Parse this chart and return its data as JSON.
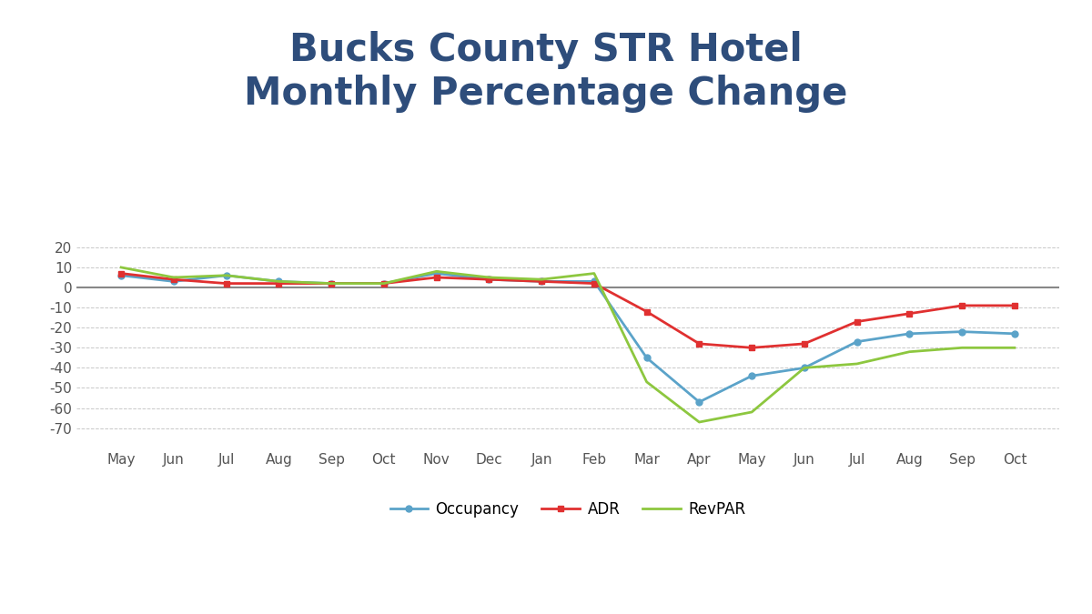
{
  "title": "Bucks County STR Hotel\nMonthly Percentage Change",
  "title_color": "#2E4D7B",
  "months": [
    "May",
    "Jun",
    "Jul",
    "Aug",
    "Sep",
    "Oct",
    "Nov",
    "Dec",
    "Jan",
    "Feb",
    "Mar",
    "Apr",
    "May",
    "Jun",
    "Jul",
    "Aug",
    "Sep",
    "Oct"
  ],
  "occupancy": [
    6,
    3,
    6,
    3,
    2,
    2,
    7,
    4,
    3,
    3,
    -35,
    -57,
    -44,
    -40,
    -27,
    -23,
    -22,
    -23
  ],
  "adr": [
    7,
    4,
    2,
    2,
    2,
    2,
    5,
    4,
    3,
    2,
    -12,
    -28,
    -30,
    -28,
    -17,
    -13,
    -9,
    -9
  ],
  "revpar": [
    10,
    5,
    6,
    3,
    2,
    2,
    8,
    5,
    4,
    7,
    -47,
    -67,
    -62,
    -40,
    -38,
    -32,
    -30,
    -30
  ],
  "occupancy_color": "#5BA3C9",
  "adr_color": "#E03030",
  "revpar_color": "#8DC73F",
  "ylim": [
    -80,
    30
  ],
  "yticks": [
    -70,
    -60,
    -50,
    -40,
    -30,
    -20,
    -10,
    0,
    10,
    20
  ],
  "background_color": "#FFFFFF",
  "grid_color": "#C8C8C8",
  "zero_line_color": "#888888"
}
